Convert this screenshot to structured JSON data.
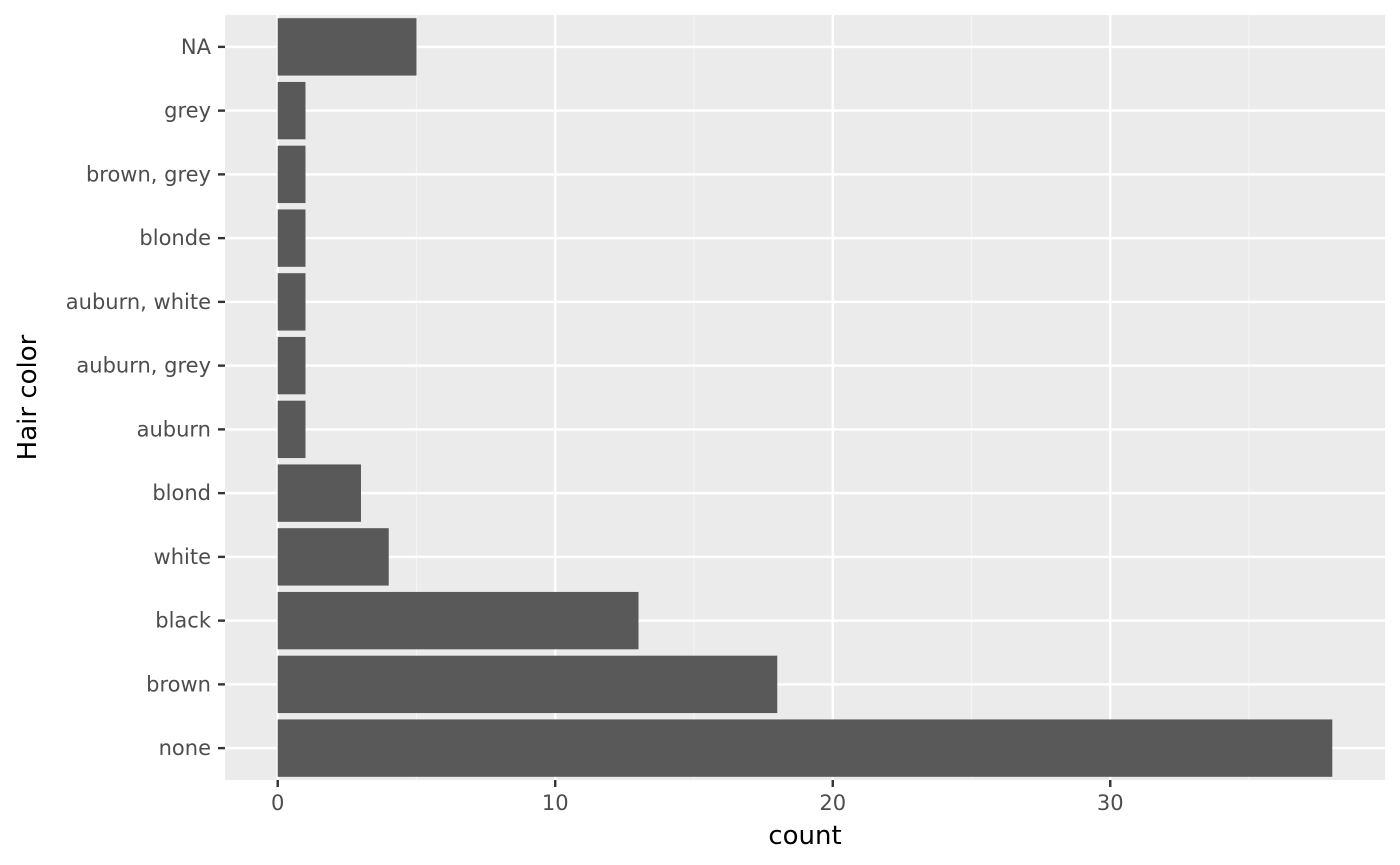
{
  "colors": {
    "panel_background": "#ebebeb",
    "grid_major": "#ffffff",
    "grid_minor": "#f5f5f5",
    "bar_fill": "#595959",
    "tick_mark": "#333333",
    "tick_text": "#4d4d4d",
    "title_text": "#000000"
  },
  "chart_data": {
    "type": "bar",
    "orientation": "horizontal",
    "categories": [
      "none",
      "brown",
      "black",
      "white",
      "blond",
      "auburn",
      "auburn, grey",
      "auburn, white",
      "blonde",
      "brown, grey",
      "grey",
      "NA"
    ],
    "values": [
      38,
      18,
      13,
      4,
      3,
      1,
      1,
      1,
      1,
      1,
      1,
      5
    ],
    "xlabel": "count",
    "ylabel": "Hair color",
    "xlim": [
      -1.9,
      39.9
    ],
    "x_ticks": [
      0,
      10,
      20,
      30
    ],
    "x_tick_labels": [
      "0",
      "10",
      "20",
      "30"
    ],
    "grid": true,
    "legend": "none"
  }
}
